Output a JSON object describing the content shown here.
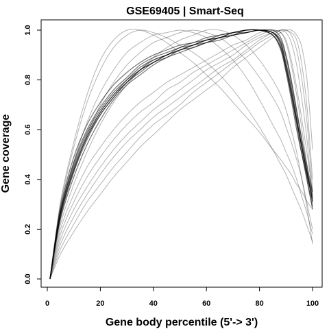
{
  "chart_data": {
    "type": "line",
    "title": "GSE69405 | Smart-Seq",
    "xlabel": "Gene body percentile (5'-> 3')",
    "ylabel": "Gene coverage",
    "xlim": [
      0,
      100
    ],
    "ylim": [
      0,
      1
    ],
    "x_ticks": [
      0,
      20,
      40,
      60,
      80,
      100
    ],
    "y_ticks": [
      0.0,
      0.2,
      0.4,
      0.6,
      0.8,
      1.0
    ],
    "x_tick_labels": [
      "0",
      "20",
      "40",
      "60",
      "80",
      "100"
    ],
    "y_tick_labels": [
      "0.0",
      "0.2",
      "0.4",
      "0.6",
      "0.8",
      "1.0"
    ],
    "grid": false,
    "legend": "none",
    "line_color": "#000000",
    "x": [
      1,
      5,
      10,
      15,
      20,
      25,
      30,
      35,
      40,
      45,
      50,
      55,
      60,
      65,
      70,
      75,
      80,
      85,
      88,
      90,
      92,
      94,
      96,
      98,
      100
    ],
    "series": [
      {
        "values": [
          0.0,
          0.28,
          0.47,
          0.6,
          0.69,
          0.76,
          0.81,
          0.86,
          0.89,
          0.91,
          0.93,
          0.95,
          0.96,
          0.98,
          0.99,
          1.0,
          1.0,
          0.99,
          0.95,
          0.86,
          0.76,
          0.64,
          0.52,
          0.4,
          0.29
        ]
      },
      {
        "values": [
          0.0,
          0.26,
          0.44,
          0.57,
          0.67,
          0.74,
          0.8,
          0.85,
          0.88,
          0.9,
          0.92,
          0.94,
          0.96,
          0.97,
          0.99,
          1.0,
          1.0,
          0.98,
          0.92,
          0.83,
          0.72,
          0.6,
          0.5,
          0.41,
          0.33
        ]
      },
      {
        "values": [
          0.0,
          0.27,
          0.46,
          0.59,
          0.68,
          0.75,
          0.8,
          0.84,
          0.87,
          0.9,
          0.92,
          0.94,
          0.95,
          0.97,
          0.98,
          0.99,
          1.0,
          0.99,
          0.96,
          0.89,
          0.79,
          0.67,
          0.55,
          0.43,
          0.31
        ]
      },
      {
        "values": [
          0.0,
          0.25,
          0.43,
          0.56,
          0.66,
          0.73,
          0.79,
          0.83,
          0.87,
          0.89,
          0.92,
          0.93,
          0.95,
          0.97,
          0.98,
          0.99,
          1.0,
          0.99,
          0.94,
          0.85,
          0.74,
          0.62,
          0.5,
          0.39,
          0.28
        ]
      },
      {
        "values": [
          0.0,
          0.29,
          0.49,
          0.62,
          0.71,
          0.78,
          0.83,
          0.87,
          0.9,
          0.92,
          0.94,
          0.95,
          0.97,
          0.98,
          0.99,
          1.0,
          1.0,
          0.98,
          0.93,
          0.84,
          0.74,
          0.63,
          0.53,
          0.43,
          0.34
        ]
      },
      {
        "values": [
          0.0,
          0.24,
          0.41,
          0.54,
          0.64,
          0.72,
          0.78,
          0.82,
          0.86,
          0.89,
          0.91,
          0.93,
          0.95,
          0.96,
          0.98,
          0.99,
          1.0,
          1.0,
          0.97,
          0.9,
          0.8,
          0.68,
          0.56,
          0.45,
          0.35
        ]
      },
      {
        "values": [
          0.0,
          0.27,
          0.45,
          0.58,
          0.67,
          0.74,
          0.79,
          0.84,
          0.87,
          0.9,
          0.92,
          0.94,
          0.96,
          0.97,
          0.98,
          1.0,
          1.0,
          0.99,
          0.95,
          0.87,
          0.77,
          0.65,
          0.53,
          0.42,
          0.31
        ]
      },
      {
        "values": [
          0.0,
          0.26,
          0.44,
          0.57,
          0.66,
          0.73,
          0.79,
          0.84,
          0.88,
          0.9,
          0.93,
          0.94,
          0.96,
          0.97,
          0.99,
          0.99,
          1.0,
          0.98,
          0.93,
          0.85,
          0.75,
          0.64,
          0.53,
          0.42,
          0.32
        ]
      },
      {
        "values": [
          0.0,
          0.2,
          0.34,
          0.45,
          0.53,
          0.6,
          0.66,
          0.71,
          0.75,
          0.79,
          0.82,
          0.85,
          0.88,
          0.91,
          0.94,
          0.96,
          0.99,
          1.0,
          0.99,
          0.95,
          0.86,
          0.74,
          0.6,
          0.45,
          0.3
        ]
      },
      {
        "values": [
          0.0,
          0.18,
          0.31,
          0.41,
          0.49,
          0.56,
          0.62,
          0.67,
          0.71,
          0.76,
          0.79,
          0.83,
          0.86,
          0.89,
          0.92,
          0.95,
          0.98,
          1.0,
          0.99,
          0.96,
          0.88,
          0.77,
          0.64,
          0.5,
          0.35
        ]
      },
      {
        "values": [
          0.0,
          0.16,
          0.28,
          0.37,
          0.45,
          0.52,
          0.58,
          0.63,
          0.68,
          0.72,
          0.76,
          0.8,
          0.84,
          0.87,
          0.9,
          0.94,
          0.97,
          0.99,
          1.0,
          0.99,
          0.95,
          0.86,
          0.72,
          0.55,
          0.32
        ]
      },
      {
        "values": [
          0.0,
          0.14,
          0.25,
          0.34,
          0.42,
          0.49,
          0.55,
          0.6,
          0.65,
          0.69,
          0.73,
          0.77,
          0.81,
          0.85,
          0.88,
          0.92,
          0.96,
          0.99,
          1.0,
          1.0,
          0.98,
          0.92,
          0.8,
          0.62,
          0.36
        ]
      },
      {
        "values": [
          0.0,
          0.12,
          0.22,
          0.31,
          0.38,
          0.45,
          0.51,
          0.57,
          0.62,
          0.66,
          0.7,
          0.75,
          0.79,
          0.83,
          0.87,
          0.91,
          0.95,
          0.98,
          1.0,
          1.0,
          0.99,
          0.96,
          0.86,
          0.68,
          0.4
        ]
      },
      {
        "values": [
          0.0,
          0.31,
          0.55,
          0.74,
          0.88,
          0.96,
          1.0,
          1.0,
          0.98,
          0.95,
          0.91,
          0.87,
          0.82,
          0.77,
          0.71,
          0.65,
          0.59,
          0.52,
          0.48,
          0.45,
          0.42,
          0.38,
          0.35,
          0.31,
          0.28
        ]
      },
      {
        "values": [
          0.0,
          0.3,
          0.53,
          0.71,
          0.84,
          0.93,
          0.98,
          1.0,
          0.99,
          0.97,
          0.94,
          0.91,
          0.87,
          0.82,
          0.76,
          0.69,
          0.61,
          0.52,
          0.46,
          0.42,
          0.37,
          0.32,
          0.27,
          0.21,
          0.15
        ]
      },
      {
        "values": [
          0.0,
          0.27,
          0.47,
          0.63,
          0.75,
          0.84,
          0.91,
          0.95,
          0.98,
          0.99,
          1.0,
          0.99,
          0.97,
          0.93,
          0.88,
          0.81,
          0.72,
          0.62,
          0.56,
          0.51,
          0.46,
          0.4,
          0.33,
          0.26,
          0.18
        ]
      },
      {
        "values": [
          0.0,
          0.25,
          0.43,
          0.58,
          0.7,
          0.79,
          0.86,
          0.91,
          0.95,
          0.97,
          0.99,
          1.0,
          0.99,
          0.97,
          0.93,
          0.88,
          0.81,
          0.73,
          0.67,
          0.61,
          0.55,
          0.48,
          0.4,
          0.3,
          0.2
        ]
      },
      {
        "values": [
          0.0,
          0.22,
          0.38,
          0.51,
          0.62,
          0.71,
          0.78,
          0.84,
          0.89,
          0.93,
          0.96,
          0.98,
          1.0,
          1.0,
          0.98,
          0.94,
          0.88,
          0.8,
          0.74,
          0.68,
          0.6,
          0.51,
          0.4,
          0.28,
          0.14
        ]
      },
      {
        "values": [
          0.0,
          0.1,
          0.19,
          0.27,
          0.34,
          0.41,
          0.47,
          0.53,
          0.58,
          0.63,
          0.68,
          0.72,
          0.76,
          0.8,
          0.85,
          0.89,
          0.93,
          0.97,
          0.99,
          1.0,
          1.0,
          0.98,
          0.93,
          0.79,
          0.52
        ]
      }
    ]
  }
}
